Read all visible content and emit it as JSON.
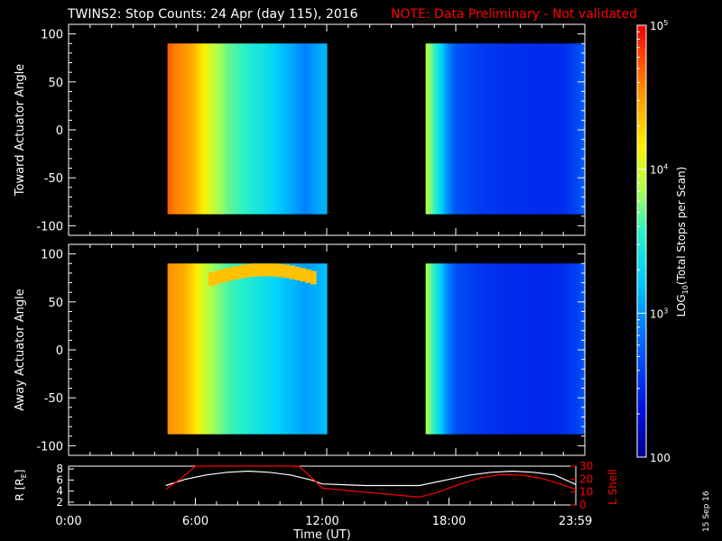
{
  "title": "TWINS2: Stop Counts: 24 Apr (day 115), 2016",
  "note": "NOTE: Data Preliminary - Not validated",
  "datestamp": "15 Sep 16",
  "colors": {
    "background": "#000000",
    "axes": "#ffffff",
    "note": "#ff0000",
    "lshell": "#ff0000",
    "radius": "#ffffff"
  },
  "chart_data": [
    {
      "type": "heatmap",
      "panel": "toward",
      "ylabel": "Toward Actuator Angle",
      "yticks": [
        "100",
        "50",
        "0",
        "-50",
        "-100"
      ],
      "ylim": [
        -110,
        110
      ],
      "xlim_hours": [
        0,
        24
      ],
      "data_y_range": [
        -88,
        90
      ],
      "colorscale": "log",
      "data_intervals_hours": [
        [
          4.6,
          12.0
        ],
        [
          16.6,
          24.0
        ]
      ],
      "profiles": [
        {
          "hour": 4.6,
          "log10": 4.72
        },
        {
          "hour": 4.9,
          "log10": 4.6
        },
        {
          "hour": 5.3,
          "log10": 4.55
        },
        {
          "hour": 5.7,
          "log10": 4.45
        },
        {
          "hour": 6.1,
          "log10": 4.25
        },
        {
          "hour": 6.5,
          "log10": 4.05
        },
        {
          "hour": 7.0,
          "log10": 3.85
        },
        {
          "hour": 7.5,
          "log10": 3.68
        },
        {
          "hour": 8.0,
          "log10": 3.6
        },
        {
          "hour": 8.6,
          "log10": 3.48
        },
        {
          "hour": 9.2,
          "log10": 3.38
        },
        {
          "hour": 9.8,
          "log10": 3.22
        },
        {
          "hour": 10.4,
          "log10": 3.08
        },
        {
          "hour": 11.0,
          "log10": 2.92
        },
        {
          "hour": 11.5,
          "log10": 3.05
        },
        {
          "hour": 12.0,
          "log10": 3.15
        },
        {
          "hour": 16.6,
          "log10": 3.95
        },
        {
          "hour": 16.9,
          "log10": 3.7
        },
        {
          "hour": 17.2,
          "log10": 3.4
        },
        {
          "hour": 17.6,
          "log10": 3.0
        },
        {
          "hour": 18.0,
          "log10": 2.7
        },
        {
          "hour": 19.0,
          "log10": 2.58
        },
        {
          "hour": 20.0,
          "log10": 2.52
        },
        {
          "hour": 21.0,
          "log10": 2.5
        },
        {
          "hour": 22.0,
          "log10": 2.48
        },
        {
          "hour": 23.0,
          "log10": 2.5
        },
        {
          "hour": 23.7,
          "log10": 2.65
        },
        {
          "hour": 24.0,
          "log10": 2.75
        }
      ]
    },
    {
      "type": "heatmap",
      "panel": "away",
      "ylabel": "Away Actuator Angle",
      "yticks": [
        "100",
        "50",
        "0",
        "-50",
        "-100"
      ],
      "ylim": [
        -110,
        110
      ],
      "xlim_hours": [
        0,
        24
      ],
      "data_y_range": [
        -88,
        90
      ],
      "colorscale": "log",
      "data_intervals_hours": [
        [
          4.6,
          12.0
        ],
        [
          16.6,
          24.0
        ]
      ],
      "features": [
        {
          "name": "high-angle enhancement",
          "hours": [
            6.5,
            11.5
          ],
          "angle_deg": [
            65,
            90
          ],
          "log10": 4.35
        }
      ],
      "profiles": [
        {
          "hour": 4.6,
          "log10": 4.55
        },
        {
          "hour": 4.9,
          "log10": 4.5
        },
        {
          "hour": 5.3,
          "log10": 4.45
        },
        {
          "hour": 5.7,
          "log10": 4.3
        },
        {
          "hour": 6.1,
          "log10": 4.1
        },
        {
          "hour": 6.5,
          "log10": 3.9
        },
        {
          "hour": 7.0,
          "log10": 3.75
        },
        {
          "hour": 7.5,
          "log10": 3.62
        },
        {
          "hour": 8.0,
          "log10": 3.55
        },
        {
          "hour": 8.6,
          "log10": 3.45
        },
        {
          "hour": 9.2,
          "log10": 3.35
        },
        {
          "hour": 9.8,
          "log10": 3.25
        },
        {
          "hour": 10.4,
          "log10": 3.15
        },
        {
          "hour": 11.0,
          "log10": 3.05
        },
        {
          "hour": 11.5,
          "log10": 3.1
        },
        {
          "hour": 12.0,
          "log10": 3.2
        },
        {
          "hour": 16.6,
          "log10": 3.9
        },
        {
          "hour": 16.9,
          "log10": 3.65
        },
        {
          "hour": 17.2,
          "log10": 3.35
        },
        {
          "hour": 17.6,
          "log10": 2.95
        },
        {
          "hour": 18.0,
          "log10": 2.68
        },
        {
          "hour": 19.0,
          "log10": 2.56
        },
        {
          "hour": 20.0,
          "log10": 2.5
        },
        {
          "hour": 21.0,
          "log10": 2.48
        },
        {
          "hour": 22.0,
          "log10": 2.46
        },
        {
          "hour": 23.0,
          "log10": 2.5
        },
        {
          "hour": 23.7,
          "log10": 2.62
        },
        {
          "hour": 24.0,
          "log10": 2.72
        }
      ]
    },
    {
      "type": "line",
      "panel": "orbit",
      "xlabel": "Time (UT)",
      "xticks": [
        "0:00",
        "6:00",
        "12:00",
        "18:00",
        "23:59"
      ],
      "xtick_hours": [
        0,
        6,
        12,
        18,
        23.983
      ],
      "left_axis": {
        "label": "R [R",
        "label_sub": "E",
        "label_end": "]",
        "ticks": [
          "8",
          "6",
          "4",
          "2"
        ],
        "ylim": [
          1.5,
          8.5
        ]
      },
      "right_axis": {
        "label": "L Shell",
        "ticks": [
          "30",
          "20",
          "10",
          "0"
        ],
        "ylim": [
          0,
          30
        ]
      },
      "series": [
        {
          "name": "R",
          "axis": "left",
          "x": [
            4.6,
            5.5,
            6.5,
            7.5,
            8.5,
            9.5,
            10.5,
            11.5,
            12.0,
            14.0,
            16.6,
            18.0,
            19.0,
            20.0,
            21.0,
            22.0,
            23.0,
            24.0
          ],
          "y": [
            5.0,
            6.1,
            6.9,
            7.4,
            7.6,
            7.4,
            6.9,
            6.0,
            5.3,
            5.0,
            5.0,
            6.1,
            6.9,
            7.4,
            7.6,
            7.4,
            6.9,
            5.2
          ]
        },
        {
          "name": "L Shell",
          "axis": "right",
          "x": [
            4.6,
            5.2,
            5.8,
            6.0,
            10.9,
            11.3,
            11.7,
            12.0,
            14.0,
            16.6,
            17.5,
            18.5,
            19.5,
            20.5,
            21.5,
            22.5,
            23.3,
            24.0
          ],
          "y": [
            12,
            19,
            27,
            30,
            30,
            24,
            18,
            13,
            10,
            6,
            10,
            16,
            21,
            23.5,
            23,
            20,
            16,
            12
          ]
        }
      ]
    },
    {
      "type": "colorbar",
      "label": "LOG",
      "label_sub": "10",
      "label_end": "(Total Stops per Scan)",
      "scale": "log",
      "range": [
        100,
        100000
      ],
      "ticks": [
        {
          "base": "10",
          "exp": "5",
          "value": 100000
        },
        {
          "base": "10",
          "exp": "4",
          "value": 10000
        },
        {
          "base": "10",
          "exp": "3",
          "value": 1000
        },
        {
          "base": "100",
          "exp": "",
          "value": 100
        }
      ]
    }
  ]
}
